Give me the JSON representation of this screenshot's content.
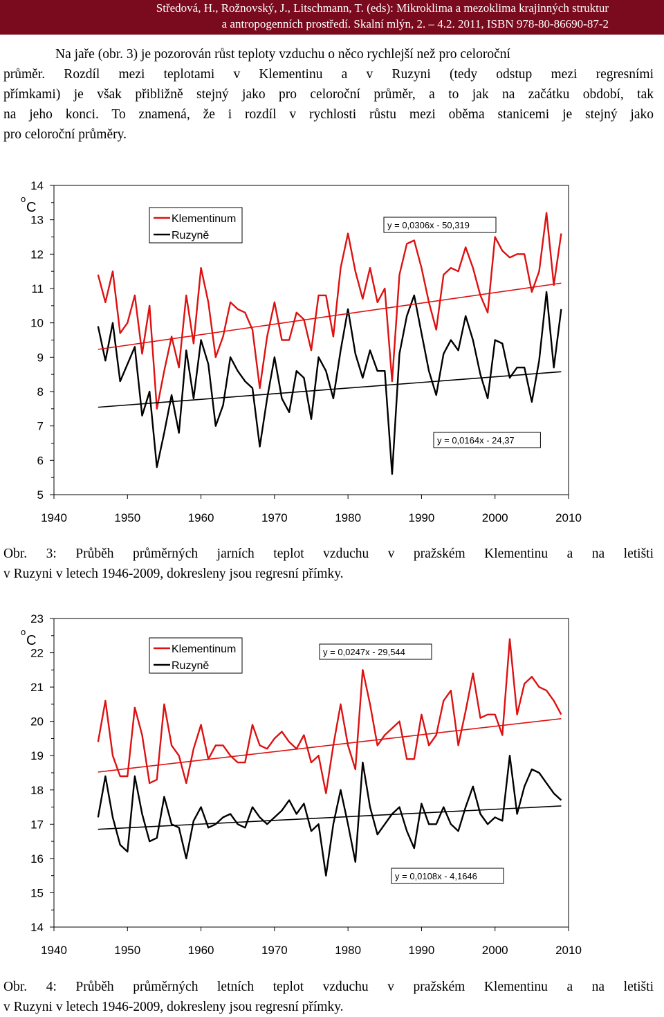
{
  "header": {
    "line1": "Středová, H., Rožnovský, J., Litschmann, T. (eds): Mikroklima a mezoklima krajinných struktur",
    "line2": "a antropogenních prostředí. Skalní mlýn, 2. – 4.2. 2011, ISBN 978-80-86690-87-2"
  },
  "paragraph": [
    "Na jaře (obr. 3) je pozorován růst teploty vzduchu o něco rychlejší než pro celoroční",
    "průměr. Rozdíl mezi teplotami v Klementinu a v Ruzyni (tedy odstup mezi regresními",
    "přímkami) je však přibližně stejný jako pro celoroční průměr, a to jak na začátku období, tak",
    "na jeho konci. To znamená, že i rozdíl v rychlosti růstu mezi oběma stanicemi je stejný jako",
    "pro celoroční průměry."
  ],
  "captions": {
    "fig3": [
      "Obr. 3: Průběh průměrných jarních teplot vzduchu v pražském Klementinu a na letišti",
      "v Ruzyni v letech 1946-2009, dokresleny jsou regresní přímky."
    ],
    "fig4": [
      "Obr. 4: Průběh průměrných letních teplot vzduchu v pražském Klementinu a na letišti",
      "v Ruzyni v letech 1946-2009, dokresleny jsou regresní přímky."
    ]
  },
  "chart_data": [
    {
      "type": "line",
      "title": "",
      "ylabel": "oC",
      "xlabel": "",
      "xlim": [
        1940,
        2010
      ],
      "ylim": [
        5,
        14
      ],
      "xticks": [
        1940,
        1950,
        1960,
        1970,
        1980,
        1990,
        2000,
        2010
      ],
      "yticks": [
        5,
        6,
        7,
        8,
        9,
        10,
        11,
        12,
        13,
        14
      ],
      "x_start": 1946,
      "series": [
        {
          "name": "Klementinum",
          "color": "#dd1111",
          "values": [
            11.4,
            10.6,
            11.5,
            9.7,
            10.0,
            10.8,
            9.1,
            10.5,
            7.5,
            8.6,
            9.6,
            8.7,
            10.8,
            9.4,
            11.6,
            10.6,
            9.0,
            9.6,
            10.6,
            10.4,
            10.3,
            9.8,
            8.1,
            9.6,
            10.6,
            9.5,
            9.5,
            10.3,
            10.1,
            9.2,
            10.8,
            10.8,
            9.6,
            11.6,
            12.6,
            11.5,
            10.7,
            11.6,
            10.6,
            11.0,
            8.3,
            11.4,
            12.3,
            12.4,
            11.6,
            10.6,
            9.8,
            11.4,
            11.6,
            11.5,
            12.2,
            11.6,
            10.8,
            10.3,
            12.5,
            12.1,
            11.9,
            12.0,
            12.0,
            10.9,
            11.5,
            13.2,
            11.1,
            12.6
          ]
        },
        {
          "name": "Ruzyně",
          "color": "#000000",
          "values": [
            9.9,
            8.9,
            10.0,
            8.3,
            8.8,
            9.3,
            7.3,
            8.0,
            5.8,
            6.8,
            7.9,
            6.8,
            9.2,
            7.8,
            9.5,
            8.8,
            7.0,
            7.6,
            9.0,
            8.6,
            8.3,
            8.1,
            6.4,
            7.8,
            9.0,
            7.8,
            7.4,
            8.6,
            8.4,
            7.2,
            9.0,
            8.6,
            7.8,
            9.2,
            10.4,
            9.1,
            8.4,
            9.2,
            8.6,
            8.6,
            5.6,
            9.1,
            10.2,
            10.8,
            9.7,
            8.6,
            7.9,
            9.1,
            9.5,
            9.2,
            10.2,
            9.5,
            8.5,
            7.8,
            9.5,
            9.4,
            8.4,
            8.7,
            8.7,
            7.7,
            8.9,
            10.9,
            8.7,
            10.4
          ]
        }
      ],
      "regression": [
        {
          "label": "y = 0,0306x - 50,319",
          "series": "Klementinum",
          "slope": 0.0306,
          "intercept": -50.319
        },
        {
          "label": "y = 0,0164x - 24,37",
          "series": "Ruzyně",
          "slope": 0.0164,
          "intercept": -24.37
        }
      ],
      "legend_position": "top-left"
    },
    {
      "type": "line",
      "title": "",
      "ylabel": "oC",
      "xlabel": "",
      "xlim": [
        1940,
        2010
      ],
      "ylim": [
        14,
        23
      ],
      "xticks": [
        1940,
        1950,
        1960,
        1970,
        1980,
        1990,
        2000,
        2010
      ],
      "yticks": [
        14,
        15,
        16,
        17,
        18,
        19,
        20,
        21,
        22,
        23
      ],
      "x_start": 1946,
      "series": [
        {
          "name": "Klementinum",
          "color": "#dd1111",
          "values": [
            19.4,
            20.6,
            19.0,
            18.4,
            18.4,
            20.4,
            19.6,
            18.2,
            18.3,
            20.5,
            19.3,
            19.0,
            18.2,
            19.2,
            19.9,
            18.9,
            19.3,
            19.3,
            19.0,
            18.8,
            18.8,
            19.9,
            19.3,
            19.2,
            19.5,
            19.7,
            19.4,
            19.2,
            19.6,
            18.8,
            19.0,
            17.9,
            19.3,
            20.5,
            19.3,
            18.6,
            21.5,
            20.5,
            19.3,
            19.6,
            19.8,
            20.0,
            18.9,
            18.9,
            20.2,
            19.3,
            19.6,
            20.6,
            20.9,
            19.3,
            20.3,
            21.4,
            20.1,
            20.2,
            20.2,
            19.6,
            22.4,
            20.2,
            21.1,
            21.3,
            21.0,
            20.9,
            20.6,
            20.2
          ]
        },
        {
          "name": "Ruzyně",
          "color": "#000000",
          "values": [
            17.2,
            18.4,
            17.2,
            16.4,
            16.2,
            18.4,
            17.3,
            16.5,
            16.6,
            17.8,
            17.0,
            16.9,
            16.0,
            17.1,
            17.5,
            16.9,
            17.0,
            17.2,
            17.3,
            17.0,
            16.9,
            17.5,
            17.2,
            17.0,
            17.2,
            17.4,
            17.7,
            17.3,
            17.6,
            16.8,
            17.0,
            15.5,
            17.0,
            18.0,
            17.0,
            15.9,
            18.8,
            17.5,
            16.7,
            17.0,
            17.3,
            17.5,
            16.8,
            16.3,
            17.6,
            17.0,
            17.0,
            17.5,
            17.0,
            16.8,
            17.5,
            18.1,
            17.3,
            17.0,
            17.2,
            17.1,
            19.0,
            17.3,
            18.1,
            18.6,
            18.5,
            18.2,
            17.9,
            17.7
          ]
        }
      ],
      "regression": [
        {
          "label": "y = 0,0247x - 29,544",
          "series": "Klementinum",
          "slope": 0.0247,
          "intercept": -29.544
        },
        {
          "label": "y = 0,0108x - 4,1646",
          "series": "Ruzyně",
          "slope": 0.0108,
          "intercept": -4.1646
        }
      ],
      "legend_position": "top-left"
    }
  ]
}
